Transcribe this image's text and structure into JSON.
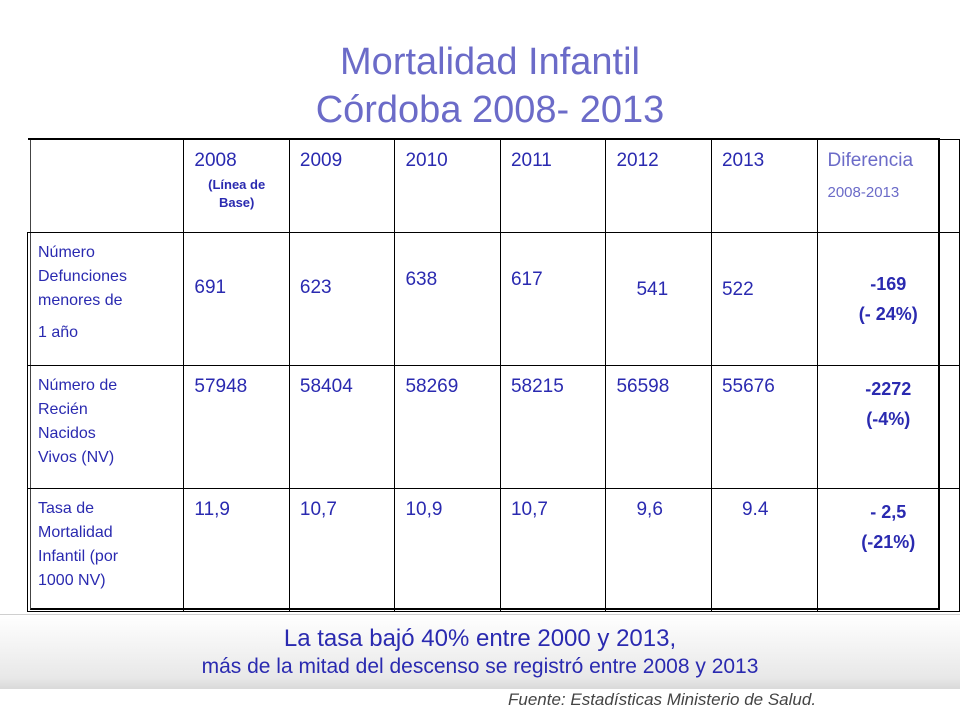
{
  "title": {
    "line1": "Mortalidad Infantil",
    "line2": "Córdoba 2008- 2013"
  },
  "table": {
    "headers": {
      "y2008": "2008",
      "y2008_note": "(Línea de Base)",
      "y2009": "2009",
      "y2010": "2010",
      "y2011": "2011",
      "y2012": "2012",
      "y2013": "2013",
      "diff": "Diferencia",
      "diff_range": "2008-2013"
    },
    "rows": [
      {
        "label_lines": [
          "Número",
          "Defunciones",
          "menores de",
          "1 año"
        ],
        "values": [
          "691",
          "623",
          "638",
          "617",
          "541",
          "522"
        ],
        "diff_value": "-169",
        "diff_pct": "(- 24%)"
      },
      {
        "label_lines": [
          "Número de",
          "Recién",
          "Nacidos",
          "Vivos (NV)"
        ],
        "values": [
          "57948",
          "58404",
          "58269",
          "58215",
          "56598",
          "55676"
        ],
        "diff_value": "-2272",
        "diff_pct": "(-4%)"
      },
      {
        "label_lines": [
          "Tasa de",
          "Mortalidad",
          "Infantil  (por",
          "1000 NV)"
        ],
        "values": [
          "11,9",
          "10,7",
          "10,9",
          "10,7",
          "9,6",
          "9.4"
        ],
        "diff_value": "- 2,5",
        "diff_pct": "(-21%)"
      }
    ]
  },
  "banner": {
    "line1": "La tasa bajó 40% entre 2000 y 2013,",
    "line2": "más de la mitad del descenso se registró entre 2008 y 2013"
  },
  "source": "Fuente: Estadísticas Ministerio de  Salud."
}
